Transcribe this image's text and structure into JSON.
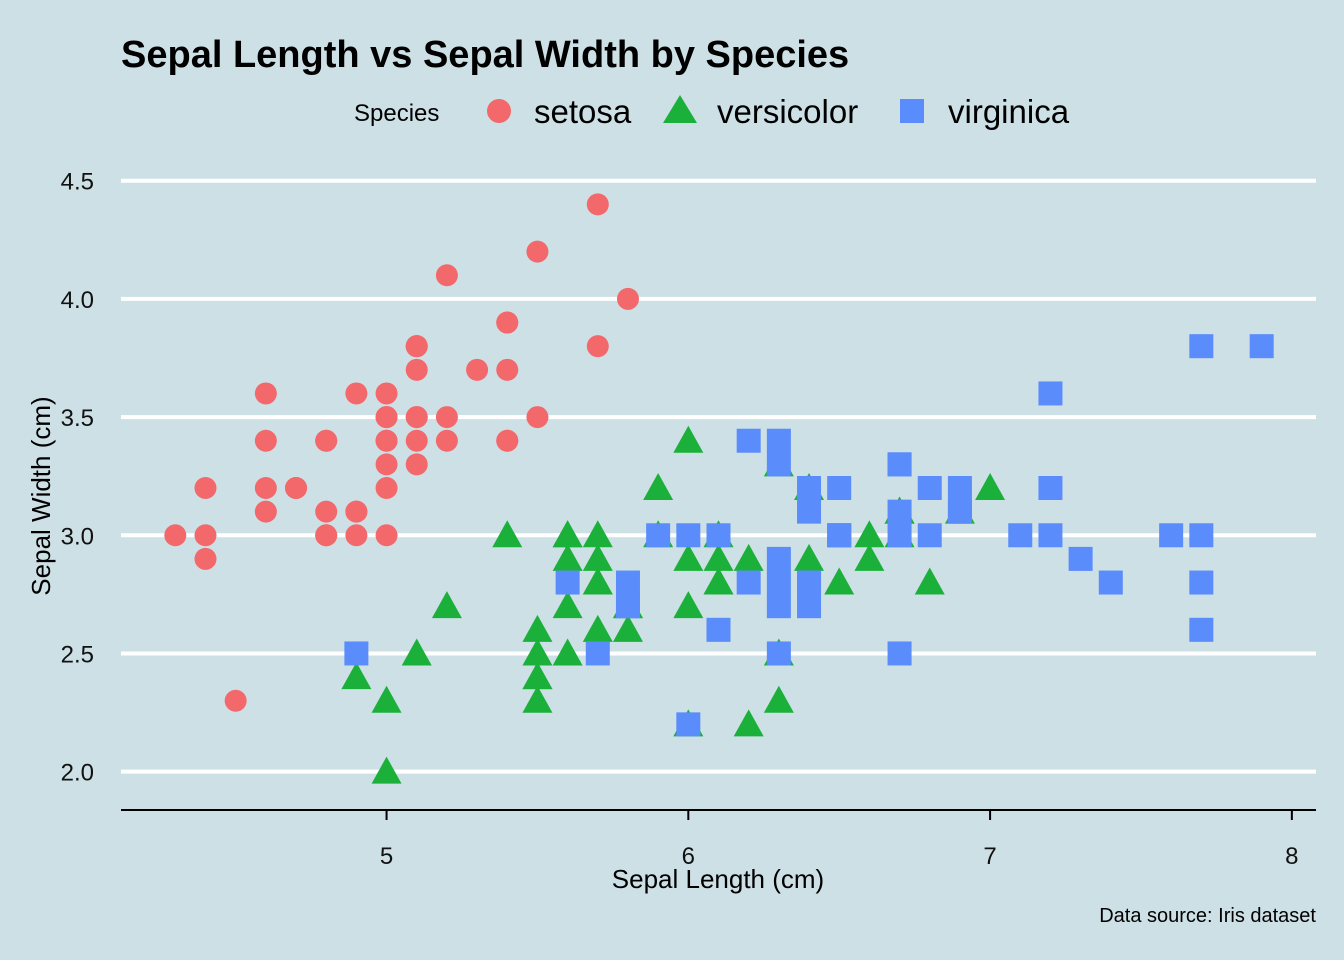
{
  "colors": {
    "background": "#cde0e6",
    "setosa": "#f3686a",
    "versicolor": "#1bb03a",
    "virginica": "#5a8cfb",
    "grid": "#ffffff"
  },
  "chart_data": {
    "type": "scatter",
    "title": "Sepal Length vs Sepal Width by Species",
    "xlabel": "Sepal Length (cm)",
    "ylabel": "Sepal Width (cm)",
    "caption": "Data source: Iris dataset",
    "xlim": [
      4.12,
      8.08
    ],
    "ylim": [
      1.88,
      4.63
    ],
    "xticks": [
      5,
      6,
      7,
      8
    ],
    "xtick_labels": [
      "5",
      "6",
      "7",
      "8"
    ],
    "yticks": [
      2.0,
      2.5,
      3.0,
      3.5,
      4.0,
      4.5
    ],
    "ytick_labels": [
      "2.0",
      "2.5",
      "3.0",
      "3.5",
      "4.0",
      "4.5"
    ],
    "grid": "horizontal-major",
    "legend": {
      "title": "Species",
      "position": "top",
      "entries": [
        "setosa",
        "versicolor",
        "virginica"
      ]
    },
    "series": [
      {
        "name": "setosa",
        "marker": "circle",
        "x": [
          5.1,
          4.9,
          4.7,
          4.6,
          5.0,
          5.4,
          4.6,
          5.0,
          4.4,
          4.9,
          5.4,
          4.8,
          4.8,
          4.3,
          5.8,
          5.7,
          5.4,
          5.1,
          5.7,
          5.1,
          5.4,
          5.1,
          4.6,
          5.1,
          4.8,
          5.0,
          5.0,
          5.2,
          5.2,
          4.7,
          4.8,
          5.4,
          5.2,
          5.5,
          4.9,
          5.0,
          5.5,
          4.9,
          4.4,
          5.1,
          5.0,
          4.5,
          4.4,
          5.0,
          5.1,
          4.8,
          5.1,
          4.6,
          5.3,
          5.0
        ],
        "y": [
          3.5,
          3.0,
          3.2,
          3.1,
          3.6,
          3.9,
          3.4,
          3.4,
          2.9,
          3.1,
          3.7,
          3.4,
          3.0,
          3.0,
          4.0,
          4.4,
          3.9,
          3.5,
          3.8,
          3.8,
          3.4,
          3.7,
          3.6,
          3.3,
          3.4,
          3.0,
          3.4,
          3.5,
          3.4,
          3.2,
          3.1,
          3.4,
          4.1,
          4.2,
          3.1,
          3.2,
          3.5,
          3.6,
          3.0,
          3.4,
          3.5,
          2.3,
          3.2,
          3.5,
          3.8,
          3.0,
          3.8,
          3.2,
          3.7,
          3.3
        ]
      },
      {
        "name": "versicolor",
        "marker": "triangle",
        "x": [
          7.0,
          6.4,
          6.9,
          5.5,
          6.5,
          5.7,
          6.3,
          4.9,
          6.6,
          5.2,
          5.0,
          5.9,
          6.0,
          6.1,
          5.6,
          6.7,
          5.6,
          5.8,
          6.2,
          5.6,
          5.9,
          6.1,
          6.3,
          6.1,
          6.4,
          6.6,
          6.8,
          6.7,
          6.0,
          5.7,
          5.5,
          5.5,
          5.8,
          6.0,
          5.4,
          6.0,
          6.7,
          6.3,
          5.6,
          5.5,
          5.5,
          6.1,
          5.8,
          5.0,
          5.6,
          5.7,
          5.7,
          6.2,
          5.1,
          5.7
        ],
        "y": [
          3.2,
          3.2,
          3.1,
          2.3,
          2.8,
          2.8,
          3.3,
          2.4,
          2.9,
          2.7,
          2.0,
          3.0,
          2.2,
          2.9,
          2.9,
          3.1,
          3.0,
          2.7,
          2.2,
          2.5,
          3.2,
          2.8,
          2.5,
          2.8,
          2.9,
          3.0,
          2.8,
          3.0,
          2.9,
          2.6,
          2.4,
          2.4,
          2.7,
          2.7,
          3.0,
          3.4,
          3.1,
          2.3,
          3.0,
          2.5,
          2.6,
          3.0,
          2.6,
          2.3,
          2.7,
          3.0,
          2.9,
          2.9,
          2.5,
          2.8
        ]
      },
      {
        "name": "virginica",
        "marker": "square",
        "x": [
          6.3,
          5.8,
          7.1,
          6.3,
          6.5,
          7.6,
          4.9,
          7.3,
          6.7,
          7.2,
          6.5,
          6.4,
          6.8,
          5.7,
          5.8,
          6.4,
          6.5,
          7.7,
          7.7,
          6.0,
          6.9,
          5.6,
          7.7,
          6.3,
          6.7,
          7.2,
          6.2,
          6.1,
          6.4,
          7.2,
          7.4,
          7.9,
          6.4,
          6.3,
          6.1,
          7.7,
          6.3,
          6.4,
          6.0,
          6.9,
          6.7,
          6.9,
          5.8,
          6.8,
          6.7,
          6.7,
          6.3,
          6.5,
          6.2,
          5.9
        ],
        "y": [
          3.3,
          2.7,
          3.0,
          2.9,
          3.0,
          3.0,
          2.5,
          2.9,
          2.5,
          3.6,
          3.2,
          2.7,
          3.0,
          2.5,
          2.8,
          3.2,
          3.0,
          3.8,
          2.6,
          2.2,
          3.2,
          2.8,
          2.8,
          2.7,
          3.3,
          3.2,
          2.8,
          3.0,
          2.8,
          3.0,
          2.8,
          3.8,
          2.8,
          2.8,
          2.6,
          3.0,
          3.4,
          3.1,
          3.0,
          3.1,
          3.1,
          3.1,
          2.7,
          3.2,
          3.3,
          3.0,
          2.5,
          3.0,
          3.4,
          3.0
        ]
      }
    ]
  }
}
